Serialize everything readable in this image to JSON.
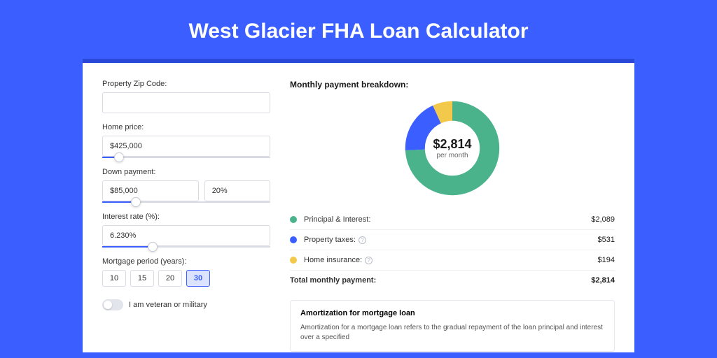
{
  "page": {
    "title": "West Glacier FHA Loan Calculator",
    "bg_color": "#3a5eff",
    "card_bg": "#ffffff",
    "accent": "#3a5eff"
  },
  "form": {
    "zip": {
      "label": "Property Zip Code:",
      "value": ""
    },
    "home_price": {
      "label": "Home price:",
      "value": "$425,000",
      "slider_pct": 10
    },
    "down_payment": {
      "label": "Down payment:",
      "amount": "$85,000",
      "percent": "20%",
      "slider_pct": 20
    },
    "interest": {
      "label": "Interest rate (%):",
      "value": "6.230%",
      "slider_pct": 30
    },
    "period": {
      "label": "Mortgage period (years):",
      "options": [
        "10",
        "15",
        "20",
        "30"
      ],
      "selected": "30"
    },
    "veteran": {
      "label": "I am veteran or military",
      "on": false
    }
  },
  "breakdown": {
    "title": "Monthly payment breakdown:",
    "center_amount": "$2,814",
    "center_sub": "per month",
    "items": [
      {
        "label": "Principal & Interest:",
        "value": "$2,089",
        "color": "#4bb38b",
        "has_info": false
      },
      {
        "label": "Property taxes:",
        "value": "$531",
        "color": "#3a5eff",
        "has_info": true
      },
      {
        "label": "Home insurance:",
        "value": "$194",
        "color": "#f3c94b",
        "has_info": true
      }
    ],
    "total": {
      "label": "Total monthly payment:",
      "value": "$2,814"
    },
    "donut": {
      "stroke_width": 20,
      "segments": [
        {
          "color": "#4bb38b",
          "fraction": 0.742
        },
        {
          "color": "#3a5eff",
          "fraction": 0.189
        },
        {
          "color": "#f3c94b",
          "fraction": 0.069
        }
      ]
    }
  },
  "amortization": {
    "title": "Amortization for mortgage loan",
    "text": "Amortization for a mortgage loan refers to the gradual repayment of the loan principal and interest over a specified"
  }
}
